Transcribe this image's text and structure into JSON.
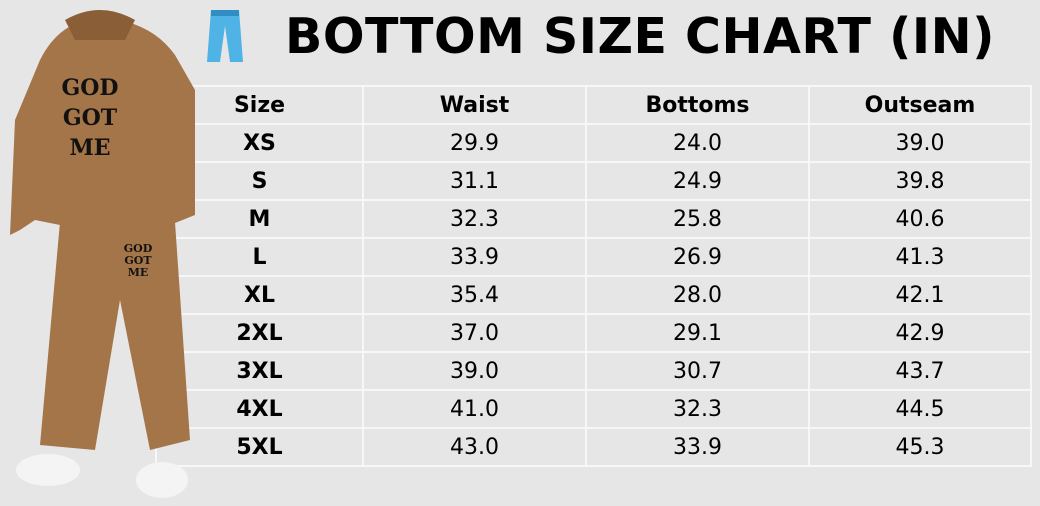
{
  "title": "BOTTOM SIZE CHART (IN)",
  "icon": "jeans-icon",
  "colors": {
    "background": "#e6e6e6",
    "jeans": "#4fb3e6",
    "garment": "#a47548"
  },
  "product_print": "GOD GOT ME",
  "table": {
    "headers": [
      "Size",
      "Waist",
      "Bottoms",
      "Outseam"
    ],
    "rows": [
      [
        "XS",
        "29.9",
        "24.0",
        "39.0"
      ],
      [
        "S",
        "31.1",
        "24.9",
        "39.8"
      ],
      [
        "M",
        "32.3",
        "25.8",
        "40.6"
      ],
      [
        "L",
        "33.9",
        "26.9",
        "41.3"
      ],
      [
        "XL",
        "35.4",
        "28.0",
        "42.1"
      ],
      [
        "2XL",
        "37.0",
        "29.1",
        "42.9"
      ],
      [
        "3XL",
        "39.0",
        "30.7",
        "43.7"
      ],
      [
        "4XL",
        "41.0",
        "32.3",
        "44.5"
      ],
      [
        "5XL",
        "43.0",
        "33.9",
        "45.3"
      ]
    ]
  }
}
